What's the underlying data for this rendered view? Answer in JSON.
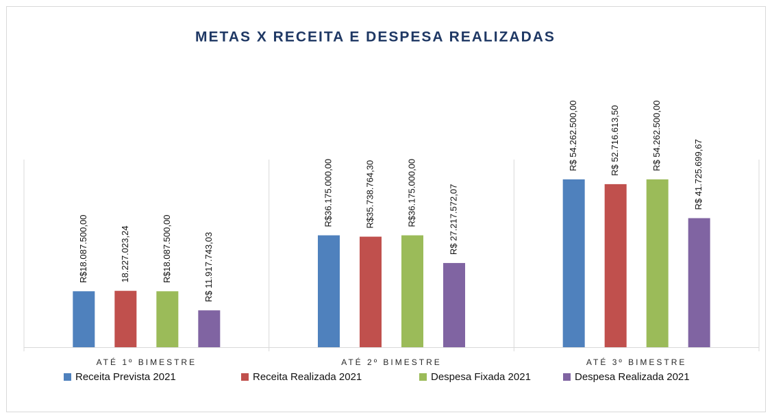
{
  "chart_data": {
    "type": "bar",
    "title": "METAS X RECEITA E DESPESA REALIZADAS",
    "categories": [
      "ATÉ 1º BIMESTRE",
      "ATÉ 2º BIMESTRE",
      "ATÉ 3º BIMESTRE"
    ],
    "ylim": [
      0,
      60000000
    ],
    "series": [
      {
        "name": "Receita Prevista 2021",
        "color": "#4f81bd",
        "values": [
          18087500.0,
          36175000.0,
          54262500.0
        ],
        "value_labels": [
          "R$18.087.500,00",
          "R$36.175.000,00",
          "R$ 54.262.500,00"
        ]
      },
      {
        "name": "Receita Realizada 2021",
        "color": "#c0504d",
        "values": [
          18227023.24,
          35738764.3,
          52716613.5
        ],
        "value_labels": [
          "18.227.023,24",
          "R$35.738.764,30",
          "R$ 52.716.613,50"
        ]
      },
      {
        "name": "Despesa Fixada 2021",
        "color": "#9bbb59",
        "values": [
          18087500.0,
          36175000.0,
          54262500.0
        ],
        "value_labels": [
          "R$18.087.500,00",
          "R$36.175.000,00",
          "R$ 54.262.500,00"
        ]
      },
      {
        "name": "Despesa Realizada 2021",
        "color": "#8064a2",
        "values": [
          11917743.03,
          27217572.07,
          41725699.67
        ],
        "value_labels": [
          "R$ 11.917.743,03",
          "R$ 27.217.572,07",
          "R$ 41.725.699,67"
        ]
      }
    ]
  }
}
